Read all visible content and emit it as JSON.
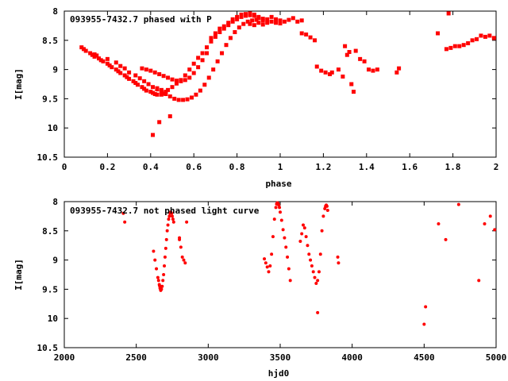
{
  "chart_data": [
    {
      "type": "scatter",
      "title": "093955-7432.7 phased with P",
      "xlabel": "phase",
      "ylabel": "I[mag]",
      "xlim": [
        0,
        2
      ],
      "ylim": [
        10.5,
        8
      ],
      "y_inverted": true,
      "xticks": [
        "0",
        "0.2",
        "0.4",
        "0.6",
        "0.8",
        "1",
        "1.2",
        "1.4",
        "1.6",
        "1.8",
        "2"
      ],
      "yticks": [
        "8",
        "8.5",
        "9",
        "9.5",
        "10",
        "10.5"
      ],
      "marker": "filled-square",
      "color": "#ff0000",
      "grid": false,
      "points": [
        [
          0.08,
          8.62
        ],
        [
          0.09,
          8.65
        ],
        [
          0.1,
          8.68
        ],
        [
          0.12,
          8.72
        ],
        [
          0.13,
          8.75
        ],
        [
          0.14,
          8.78
        ],
        [
          0.16,
          8.81
        ],
        [
          0.17,
          8.84
        ],
        [
          0.18,
          8.86
        ],
        [
          0.2,
          8.9
        ],
        [
          0.21,
          8.93
        ],
        [
          0.22,
          8.96
        ],
        [
          0.24,
          9.0
        ],
        [
          0.25,
          9.03
        ],
        [
          0.26,
          9.06
        ],
        [
          0.28,
          9.1
        ],
        [
          0.29,
          9.13
        ],
        [
          0.3,
          9.16
        ],
        [
          0.32,
          9.2
        ],
        [
          0.33,
          9.23
        ],
        [
          0.34,
          9.26
        ],
        [
          0.36,
          9.3
        ],
        [
          0.37,
          9.33
        ],
        [
          0.38,
          9.36
        ],
        [
          0.4,
          9.38
        ],
        [
          0.41,
          9.4
        ],
        [
          0.42,
          9.42
        ],
        [
          0.43,
          9.43
        ],
        [
          0.45,
          9.43
        ],
        [
          0.46,
          9.41
        ],
        [
          0.47,
          9.38
        ],
        [
          0.48,
          9.35
        ],
        [
          0.5,
          9.3
        ],
        [
          0.52,
          9.24
        ],
        [
          0.54,
          9.18
        ],
        [
          0.56,
          9.1
        ],
        [
          0.58,
          9.0
        ],
        [
          0.6,
          8.9
        ],
        [
          0.62,
          8.8
        ],
        [
          0.64,
          8.72
        ],
        [
          0.66,
          8.62
        ],
        [
          0.68,
          8.52
        ],
        [
          0.7,
          8.44
        ],
        [
          0.72,
          8.36
        ],
        [
          0.74,
          8.3
        ],
        [
          0.76,
          8.24
        ],
        [
          0.78,
          8.18
        ],
        [
          0.8,
          8.14
        ],
        [
          0.82,
          8.1
        ],
        [
          0.84,
          8.08
        ],
        [
          0.86,
          8.07
        ],
        [
          0.88,
          8.08
        ],
        [
          0.9,
          8.1
        ],
        [
          0.92,
          8.13
        ],
        [
          0.14,
          8.74
        ],
        [
          0.15,
          8.76
        ],
        [
          0.2,
          8.82
        ],
        [
          0.24,
          8.88
        ],
        [
          0.26,
          8.94
        ],
        [
          0.28,
          8.98
        ],
        [
          0.3,
          9.05
        ],
        [
          0.33,
          9.1
        ],
        [
          0.35,
          9.15
        ],
        [
          0.37,
          9.2
        ],
        [
          0.39,
          9.25
        ],
        [
          0.41,
          9.3
        ],
        [
          0.43,
          9.34
        ],
        [
          0.45,
          9.38
        ],
        [
          0.47,
          9.42
        ],
        [
          0.49,
          9.46
        ],
        [
          0.51,
          9.5
        ],
        [
          0.53,
          9.52
        ],
        [
          0.55,
          9.52
        ],
        [
          0.57,
          9.51
        ],
        [
          0.59,
          9.48
        ],
        [
          0.61,
          9.43
        ],
        [
          0.63,
          9.36
        ],
        [
          0.65,
          9.26
        ],
        [
          0.67,
          9.14
        ],
        [
          0.69,
          9.0
        ],
        [
          0.71,
          8.86
        ],
        [
          0.73,
          8.72
        ],
        [
          0.75,
          8.58
        ],
        [
          0.77,
          8.46
        ],
        [
          0.79,
          8.36
        ],
        [
          0.81,
          8.28
        ],
        [
          0.83,
          8.22
        ],
        [
          0.85,
          8.18
        ],
        [
          0.87,
          8.16
        ],
        [
          0.89,
          8.15
        ],
        [
          0.36,
          8.98
        ],
        [
          0.38,
          9.0
        ],
        [
          0.4,
          9.02
        ],
        [
          0.42,
          9.05
        ],
        [
          0.44,
          9.08
        ],
        [
          0.46,
          9.11
        ],
        [
          0.48,
          9.14
        ],
        [
          0.5,
          9.17
        ],
        [
          0.52,
          9.19
        ],
        [
          0.54,
          9.2
        ],
        [
          0.56,
          9.18
        ],
        [
          0.58,
          9.14
        ],
        [
          0.6,
          9.06
        ],
        [
          0.62,
          8.96
        ],
        [
          0.64,
          8.84
        ],
        [
          0.66,
          8.72
        ],
        [
          0.68,
          8.46
        ],
        [
          0.7,
          8.38
        ],
        [
          0.72,
          8.3
        ],
        [
          0.74,
          8.26
        ],
        [
          0.76,
          8.2
        ],
        [
          0.78,
          8.14
        ],
        [
          0.8,
          8.1
        ],
        [
          0.82,
          8.06
        ],
        [
          0.84,
          8.05
        ],
        [
          0.86,
          8.04
        ],
        [
          0.88,
          8.06
        ],
        [
          0.9,
          8.12
        ],
        [
          0.92,
          8.16
        ],
        [
          0.94,
          8.14
        ],
        [
          0.96,
          8.1
        ],
        [
          0.98,
          8.14
        ],
        [
          1.0,
          8.16
        ],
        [
          1.02,
          8.18
        ],
        [
          1.04,
          8.15
        ],
        [
          1.06,
          8.12
        ],
        [
          1.08,
          8.18
        ],
        [
          1.1,
          8.16
        ],
        [
          0.86,
          8.22
        ],
        [
          0.88,
          8.24
        ],
        [
          0.9,
          8.2
        ],
        [
          0.92,
          8.23
        ],
        [
          0.94,
          8.2
        ],
        [
          0.96,
          8.18
        ],
        [
          0.98,
          8.2
        ],
        [
          1.0,
          8.21
        ],
        [
          0.41,
          10.12
        ],
        [
          0.44,
          9.9
        ],
        [
          0.49,
          9.8
        ],
        [
          0.43,
          9.32
        ],
        [
          0.45,
          9.35
        ],
        [
          1.1,
          8.38
        ],
        [
          1.12,
          8.4
        ],
        [
          1.14,
          8.45
        ],
        [
          1.16,
          8.5
        ],
        [
          1.17,
          8.95
        ],
        [
          1.19,
          9.02
        ],
        [
          1.21,
          9.05
        ],
        [
          1.23,
          9.08
        ],
        [
          1.24,
          9.05
        ],
        [
          1.27,
          9.0
        ],
        [
          1.29,
          9.12
        ],
        [
          1.3,
          8.6
        ],
        [
          1.32,
          8.7
        ],
        [
          1.31,
          8.75
        ],
        [
          1.33,
          9.25
        ],
        [
          1.34,
          9.38
        ],
        [
          1.35,
          8.68
        ],
        [
          1.37,
          8.82
        ],
        [
          1.39,
          8.86
        ],
        [
          1.41,
          9.0
        ],
        [
          1.43,
          9.02
        ],
        [
          1.45,
          9.0
        ],
        [
          1.54,
          9.05
        ],
        [
          1.55,
          8.98
        ],
        [
          1.73,
          8.38
        ],
        [
          1.77,
          8.65
        ],
        [
          1.79,
          8.63
        ],
        [
          1.81,
          8.6
        ],
        [
          1.83,
          8.6
        ],
        [
          1.85,
          8.58
        ],
        [
          1.87,
          8.55
        ],
        [
          1.89,
          8.5
        ],
        [
          1.91,
          8.48
        ],
        [
          1.93,
          8.42
        ],
        [
          1.95,
          8.44
        ],
        [
          1.97,
          8.42
        ],
        [
          1.99,
          8.46
        ],
        [
          1.78,
          8.04
        ]
      ]
    },
    {
      "type": "scatter",
      "title": "093955-7432.7 not phased light curve",
      "xlabel": "hjd0",
      "ylabel": "I[mag]",
      "xlim": [
        2000,
        5000
      ],
      "ylim": [
        10.5,
        8
      ],
      "y_inverted": true,
      "xticks": [
        "2000",
        "2500",
        "3000",
        "3500",
        "4000",
        "4500",
        "5000"
      ],
      "yticks": [
        "8",
        "8.5",
        "9",
        "9.5",
        "10",
        "10.5"
      ],
      "marker": "filled-circle",
      "color": "#ff0000",
      "grid": false,
      "points": [
        [
          2410,
          8.2
        ],
        [
          2420,
          8.35
        ],
        [
          2620,
          8.85
        ],
        [
          2630,
          9.0
        ],
        [
          2640,
          9.15
        ],
        [
          2650,
          9.3
        ],
        [
          2660,
          9.42
        ],
        [
          2665,
          9.48
        ],
        [
          2670,
          9.52
        ],
        [
          2675,
          9.5
        ],
        [
          2680,
          9.45
        ],
        [
          2685,
          9.35
        ],
        [
          2690,
          9.25
        ],
        [
          2695,
          9.1
        ],
        [
          2700,
          8.95
        ],
        [
          2705,
          8.8
        ],
        [
          2710,
          8.65
        ],
        [
          2715,
          8.5
        ],
        [
          2720,
          8.4
        ],
        [
          2725,
          8.3
        ],
        [
          2730,
          8.25
        ],
        [
          2735,
          8.2
        ],
        [
          2740,
          8.18
        ],
        [
          2745,
          8.2
        ],
        [
          2750,
          8.25
        ],
        [
          2755,
          8.3
        ],
        [
          2760,
          8.35
        ],
        [
          2655,
          9.35
        ],
        [
          2662,
          9.44
        ],
        [
          2668,
          9.5
        ],
        [
          2672,
          9.46
        ],
        [
          2800,
          8.65
        ],
        [
          2810,
          8.78
        ],
        [
          2820,
          8.95
        ],
        [
          2830,
          9.0
        ],
        [
          2840,
          9.05
        ],
        [
          2850,
          8.35
        ],
        [
          2800,
          8.62
        ],
        [
          3390,
          8.98
        ],
        [
          3400,
          9.05
        ],
        [
          3410,
          9.12
        ],
        [
          3420,
          9.2
        ],
        [
          3430,
          9.1
        ],
        [
          3440,
          8.9
        ],
        [
          3450,
          8.6
        ],
        [
          3460,
          8.3
        ],
        [
          3470,
          8.1
        ],
        [
          3475,
          8.04
        ],
        [
          3480,
          8.02
        ],
        [
          3485,
          8.03
        ],
        [
          3490,
          8.06
        ],
        [
          3495,
          8.1
        ],
        [
          3500,
          8.18
        ],
        [
          3510,
          8.32
        ],
        [
          3520,
          8.48
        ],
        [
          3530,
          8.62
        ],
        [
          3540,
          8.78
        ],
        [
          3550,
          8.95
        ],
        [
          3560,
          9.15
        ],
        [
          3570,
          9.35
        ],
        [
          3640,
          8.68
        ],
        [
          3650,
          8.55
        ],
        [
          3660,
          8.4
        ],
        [
          3670,
          8.45
        ],
        [
          3680,
          8.6
        ],
        [
          3690,
          8.75
        ],
        [
          3700,
          8.9
        ],
        [
          3710,
          9.0
        ],
        [
          3720,
          9.1
        ],
        [
          3730,
          9.2
        ],
        [
          3740,
          9.3
        ],
        [
          3750,
          9.4
        ],
        [
          3760,
          9.35
        ],
        [
          3770,
          9.2
        ],
        [
          3780,
          8.9
        ],
        [
          3790,
          8.5
        ],
        [
          3800,
          8.25
        ],
        [
          3810,
          8.12
        ],
        [
          3815,
          8.08
        ],
        [
          3820,
          8.06
        ],
        [
          3825,
          8.08
        ],
        [
          3830,
          8.15
        ],
        [
          3760,
          9.9
        ],
        [
          3900,
          8.95
        ],
        [
          3905,
          9.05
        ],
        [
          4500,
          10.1
        ],
        [
          4510,
          9.8
        ],
        [
          4600,
          8.38
        ],
        [
          4650,
          8.65
        ],
        [
          4740,
          8.05
        ],
        [
          4880,
          9.35
        ],
        [
          4920,
          8.38
        ],
        [
          4960,
          8.25
        ],
        [
          4990,
          8.48
        ]
      ]
    }
  ]
}
